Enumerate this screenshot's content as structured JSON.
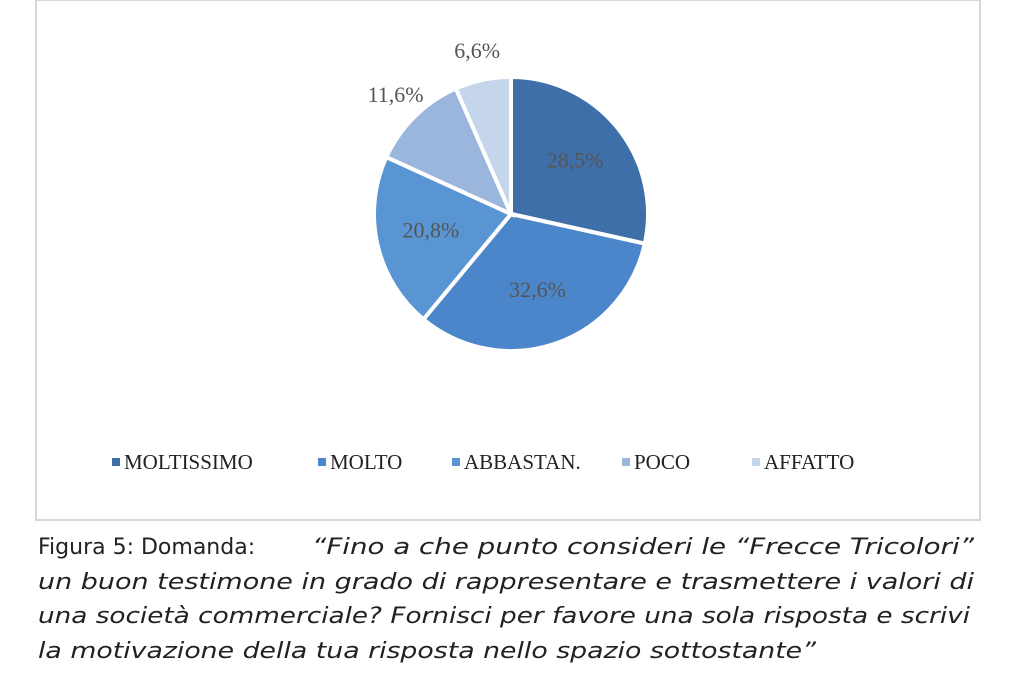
{
  "chart_data": {
    "type": "pie",
    "categories": [
      "MOLTISSIMO",
      "MOLTO",
      "ABBASTAN.",
      "POCO",
      "AFFATTO"
    ],
    "values": [
      28.5,
      32.6,
      20.8,
      11.6,
      6.6
    ],
    "value_labels": [
      "28,5%",
      "32,6%",
      "20,8%",
      "11,6%",
      "6,6%"
    ],
    "colors": [
      "#3e6fa8",
      "#4a86c9",
      "#5a95d3",
      "#9ab6dc",
      "#c4d5ec"
    ],
    "legend": "bottom"
  },
  "caption": {
    "label": "Figura 5: Domanda:",
    "lines": [
      "“Fino a che punto consideri le “Frecce Tricolori”",
      "un buon testimone in grado di rappresentare e trasmettere i valori di",
      "una società commerciale? Fornisci per favore una sola risposta e scrivi",
      "la motivazione della tua risposta nello spazio sottostante”"
    ]
  }
}
